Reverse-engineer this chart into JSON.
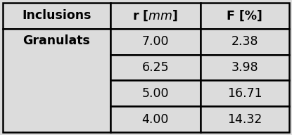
{
  "col_headers": [
    "Inclusions",
    "r [$mm$]",
    "F [%]"
  ],
  "row_label": "Granulats",
  "r_values": [
    "7.00",
    "6.25",
    "5.00",
    "4.00"
  ],
  "f_values": [
    "2.38",
    "3.98",
    "16.71",
    "14.32"
  ],
  "bg_color": "#dcdcdc",
  "border_color": "#000000",
  "header_fontsize": 12.5,
  "cell_fontsize": 12.5,
  "lw": 1.8
}
